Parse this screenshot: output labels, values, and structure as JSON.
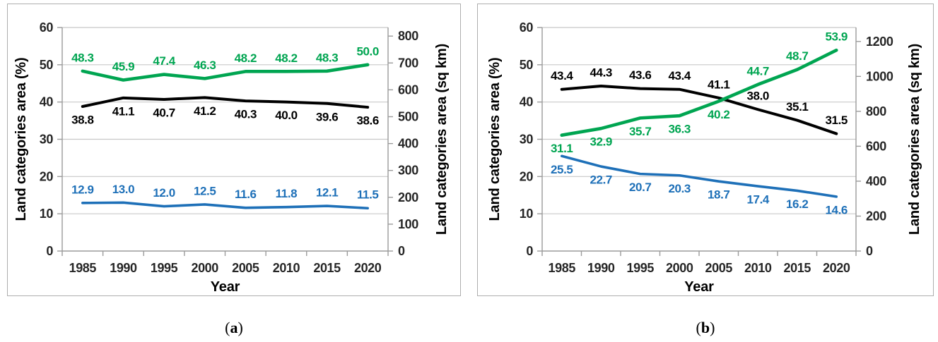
{
  "colors": {
    "background": "#FFFFFF",
    "grid": "#C8C8C8",
    "axis": "#9B9B9B",
    "tick_text": "#262626",
    "panel_border": "#AEAEAE",
    "series_green": "#00A551",
    "series_black": "#000000",
    "series_blue": "#1E70B8"
  },
  "captions": {
    "a": {
      "open": "(",
      "letter": "a",
      "close": ")"
    },
    "b": {
      "open": "(",
      "letter": "b",
      "close": ")"
    }
  },
  "chart_data": [
    {
      "id": "a",
      "type": "line",
      "caption": "(a)",
      "x_axis": {
        "label": "Year"
      },
      "categories": [
        "1985",
        "1990",
        "1995",
        "2000",
        "2005",
        "2010",
        "2015",
        "2020"
      ],
      "left_axis": {
        "label": "Land categories area  (%)",
        "min": 0,
        "max": 60,
        "ticks": [
          0,
          10,
          20,
          30,
          40,
          50,
          60
        ]
      },
      "right_axis": {
        "label": "Land categories area (sq km)",
        "ticks": [
          0,
          100,
          200,
          300,
          400,
          500,
          600,
          700,
          800
        ],
        "top_value": 832
      },
      "grid": true,
      "legend": false,
      "series": [
        {
          "name": "green",
          "color": "#00A551",
          "stroke_width": 4.6,
          "values": [
            48.3,
            45.9,
            47.4,
            46.3,
            48.2,
            48.2,
            48.3,
            50.0
          ],
          "labels": [
            "48.3",
            "45.9",
            "47.4",
            "46.3",
            "48.2",
            "48.2",
            "48.3",
            "50.0"
          ],
          "label_side": "above"
        },
        {
          "name": "black",
          "color": "#000000",
          "stroke_width": 4,
          "values": [
            38.8,
            41.1,
            40.7,
            41.2,
            40.3,
            40.0,
            39.6,
            38.6
          ],
          "labels": [
            "38.8",
            "41.1",
            "40.7",
            "41.2",
            "40.3",
            "40.0",
            "39.6",
            "38.6"
          ],
          "label_side": "below"
        },
        {
          "name": "blue",
          "color": "#1E70B8",
          "stroke_width": 3.6,
          "values": [
            12.9,
            13.0,
            12.0,
            12.5,
            11.6,
            11.8,
            12.1,
            11.5
          ],
          "labels": [
            "12.9",
            "13.0",
            "12.0",
            "12.5",
            "11.6",
            "11.8",
            "12.1",
            "11.5"
          ],
          "label_side": "above"
        }
      ]
    },
    {
      "id": "b",
      "type": "line",
      "caption": "(b)",
      "x_axis": {
        "label": "Year"
      },
      "categories": [
        "1985",
        "1990",
        "1995",
        "2000",
        "2005",
        "2010",
        "2015",
        "2020"
      ],
      "left_axis": {
        "label": "Land categories area (%)",
        "min": 0,
        "max": 60,
        "ticks": [
          0,
          10,
          20,
          30,
          40,
          50,
          60
        ]
      },
      "right_axis": {
        "label": "Land categories area (sq km)",
        "ticks": [
          0,
          200,
          400,
          600,
          800,
          1000,
          1200
        ],
        "top_value": 1280
      },
      "grid": true,
      "legend": false,
      "series": [
        {
          "name": "black",
          "color": "#000000",
          "stroke_width": 4,
          "values": [
            43.4,
            44.3,
            43.6,
            43.4,
            41.1,
            38.0,
            35.1,
            31.5
          ],
          "labels": [
            "43.4",
            "44.3",
            "43.6",
            "43.4",
            "41.1",
            "38.0",
            "35.1",
            "31.5"
          ],
          "label_side": "above"
        },
        {
          "name": "green",
          "color": "#00A551",
          "stroke_width": 4.6,
          "values": [
            31.1,
            32.9,
            35.7,
            36.3,
            40.2,
            44.7,
            48.7,
            53.9
          ],
          "labels": [
            "31.1",
            "32.9",
            "35.7",
            "36.3",
            "40.2",
            "44.7",
            "48.7",
            "53.9"
          ],
          "label_side": [
            "below",
            "below",
            "below",
            "below",
            "below",
            "above",
            "above",
            "above"
          ]
        },
        {
          "name": "blue",
          "color": "#1E70B8",
          "stroke_width": 3.6,
          "values": [
            25.5,
            22.7,
            20.7,
            20.3,
            18.7,
            17.4,
            16.2,
            14.6
          ],
          "labels": [
            "25.5",
            "22.7",
            "20.7",
            "20.3",
            "18.7",
            "17.4",
            "16.2",
            "14.6"
          ],
          "label_side": "below"
        }
      ]
    }
  ]
}
